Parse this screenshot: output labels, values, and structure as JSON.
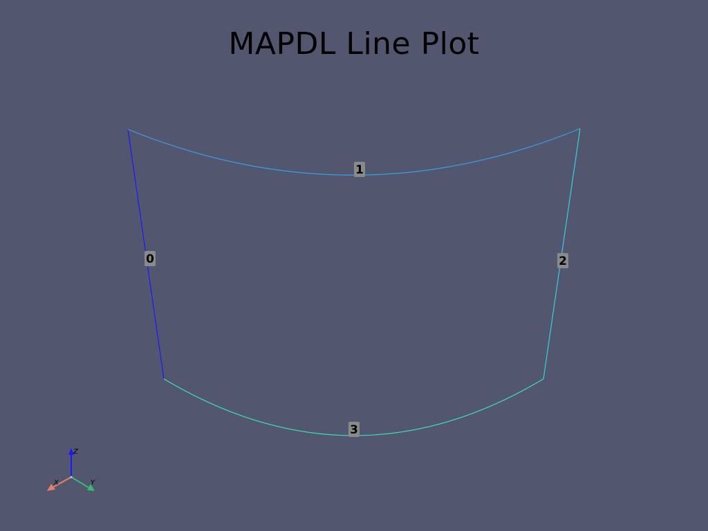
{
  "title": "MAPDL Line Plot",
  "lines": [
    {
      "id": "0",
      "label": "0",
      "color": "#1a1aff"
    },
    {
      "id": "1",
      "label": "1",
      "color": "#3aa0e8"
    },
    {
      "id": "2",
      "label": "2",
      "color": "#3ad0dc"
    },
    {
      "id": "3",
      "label": "3",
      "color": "#3ee0b4"
    }
  ],
  "axes_triad": {
    "x": {
      "label": "X",
      "color": "#e8806a"
    },
    "y": {
      "label": "Y",
      "color": "#3cb878"
    },
    "z": {
      "label": "Z",
      "color": "#1a1aff"
    }
  }
}
